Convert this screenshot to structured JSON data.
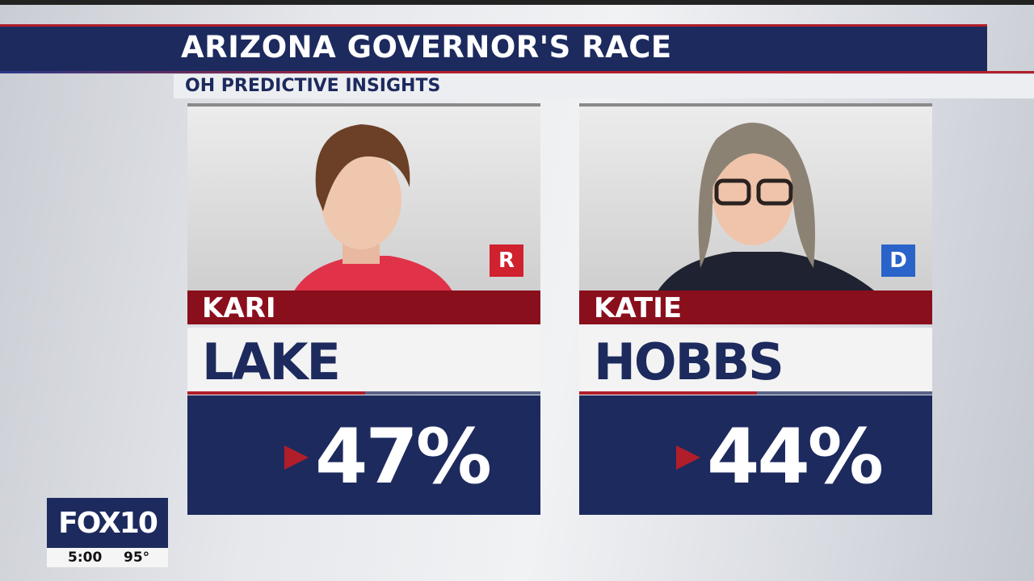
{
  "header": {
    "title": "ARIZONA GOVERNOR'S RACE",
    "source": "OH PREDICTIVE INSIGHTS"
  },
  "candidates": [
    {
      "first_name": "KARI",
      "last_name": "LAKE",
      "party": "R",
      "result": "47%"
    },
    {
      "first_name": "KATIE",
      "last_name": "HOBBS",
      "party": "D",
      "result": "44%"
    }
  ],
  "logo": {
    "brand": "FOX10",
    "time": "5:00",
    "temperature": "95°"
  }
}
